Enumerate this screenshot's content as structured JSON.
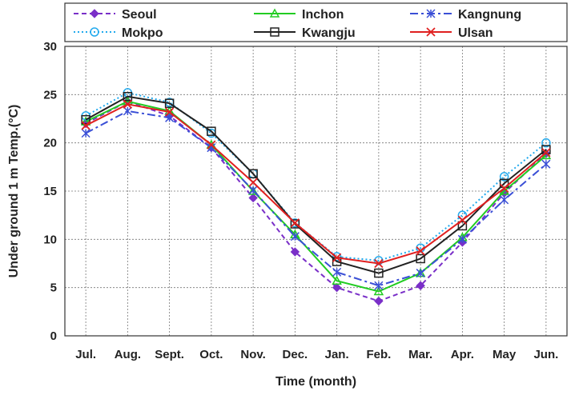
{
  "chart_data": {
    "type": "line",
    "xlabel": "Time (month)",
    "ylabel": "Under ground 1 m Temp.(°C)",
    "categories": [
      "Jul.",
      "Aug.",
      "Sept.",
      "Oct.",
      "Nov.",
      "Dec.",
      "Jan.",
      "Feb.",
      "Mar.",
      "Apr.",
      "May",
      "Jun."
    ],
    "ylim": [
      0,
      30
    ],
    "yticks": [
      0,
      5,
      10,
      15,
      20,
      25,
      30
    ],
    "grid": true,
    "legend_position": "top",
    "series": [
      {
        "name": "Seoul",
        "color": "#7a2fc8",
        "dash": "6,4",
        "marker": "diamond",
        "values": [
          22.0,
          24.3,
          22.8,
          19.5,
          14.3,
          8.7,
          5.0,
          3.6,
          5.2,
          9.7,
          14.8,
          18.9
        ]
      },
      {
        "name": "Inchon",
        "color": "#22cc22",
        "dash": "",
        "marker": "triangle",
        "values": [
          22.2,
          24.3,
          23.3,
          19.8,
          15.0,
          10.5,
          5.7,
          4.6,
          6.5,
          10.2,
          15.0,
          18.7
        ]
      },
      {
        "name": "Kangnung",
        "color": "#3a4fd6",
        "dash": "10,4,3,4",
        "marker": "star",
        "values": [
          21.0,
          23.3,
          22.6,
          19.5,
          15.1,
          10.3,
          6.6,
          5.2,
          6.5,
          10.0,
          14.1,
          17.8
        ]
      },
      {
        "name": "Mokpo",
        "color": "#22aaee",
        "dash": "2,3",
        "marker": "circle",
        "values": [
          22.8,
          25.2,
          24.2,
          21.0,
          16.8,
          11.7,
          8.2,
          7.8,
          9.1,
          12.5,
          16.5,
          20.0
        ]
      },
      {
        "name": "Kwangju",
        "color": "#222222",
        "dash": "",
        "marker": "square",
        "values": [
          22.4,
          24.8,
          24.1,
          21.2,
          16.8,
          11.6,
          7.7,
          6.5,
          8.0,
          11.4,
          15.8,
          19.3
        ]
      },
      {
        "name": "Ulsan",
        "color": "#e02020",
        "dash": "",
        "marker": "x",
        "values": [
          21.8,
          24.0,
          23.2,
          19.8,
          15.9,
          11.7,
          8.1,
          7.5,
          8.8,
          12.0,
          15.3,
          19.0
        ]
      }
    ]
  }
}
